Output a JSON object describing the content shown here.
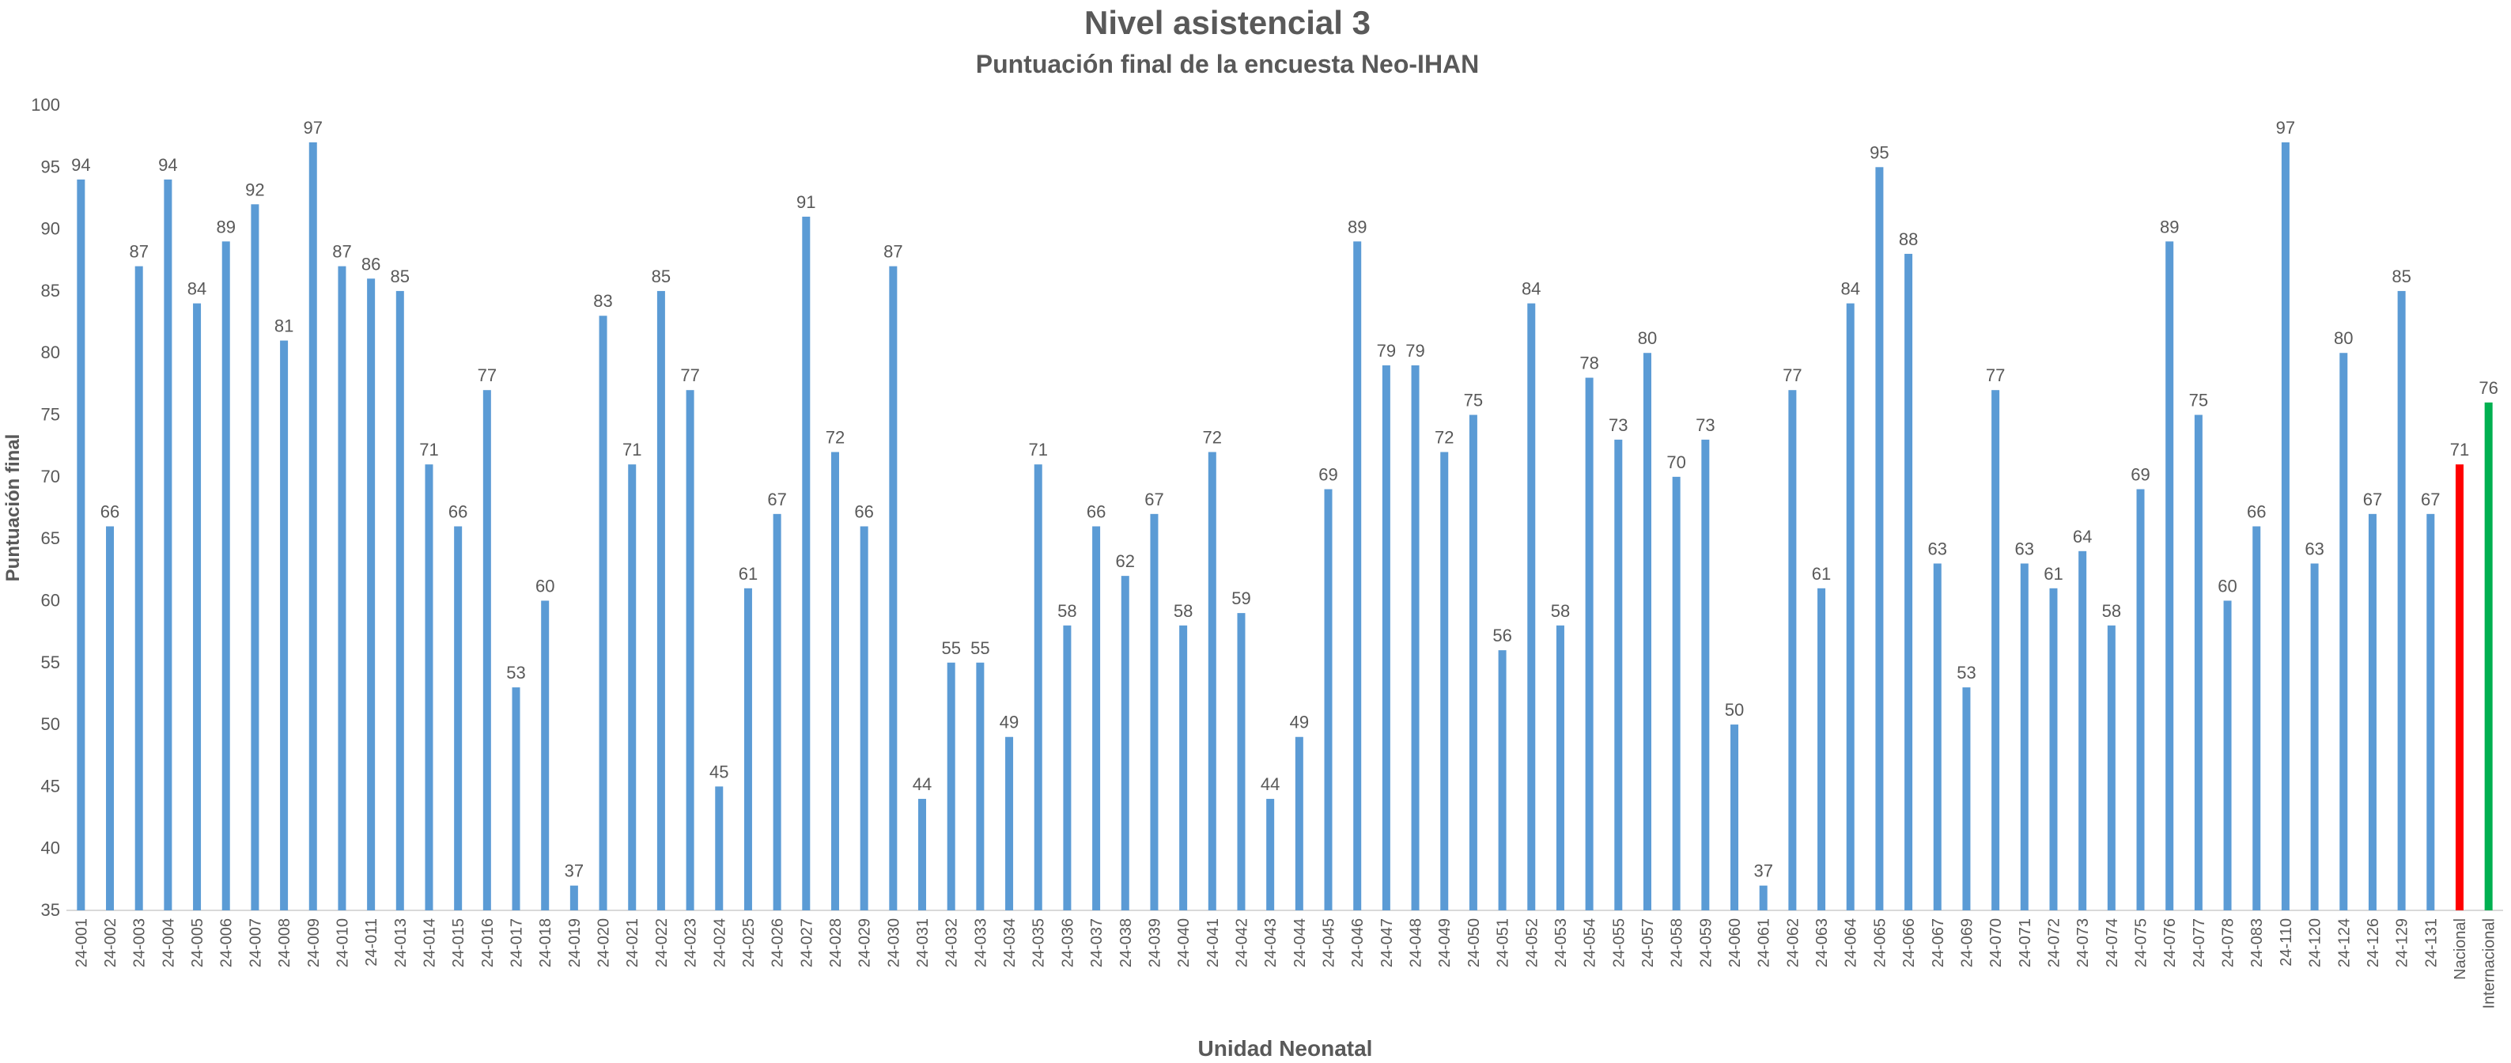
{
  "chart_data": {
    "type": "bar",
    "title": "Nivel asistencial 3",
    "subtitle": "Puntuación final de la encuesta Neo-IHAN",
    "xlabel": "Unidad Neonatal",
    "ylabel": "Puntuación final",
    "ylim": [
      35,
      100
    ],
    "yticks": [
      35,
      40,
      45,
      50,
      55,
      60,
      65,
      70,
      75,
      80,
      85,
      90,
      95,
      100
    ],
    "grid": false,
    "colors": {
      "default": "#5B9BD5",
      "Nacional": "#FF0000",
      "Internacional": "#00B050"
    },
    "categories": [
      "24-001",
      "24-002",
      "24-003",
      "24-004",
      "24-005",
      "24-006",
      "24-007",
      "24-008",
      "24-009",
      "24-010",
      "24-011",
      "24-013",
      "24-014",
      "24-015",
      "24-016",
      "24-017",
      "24-018",
      "24-019",
      "24-020",
      "24-021",
      "24-022",
      "24-023",
      "24-024",
      "24-025",
      "24-026",
      "24-027",
      "24-028",
      "24-029",
      "24-030",
      "24-031",
      "24-032",
      "24-033",
      "24-034",
      "24-035",
      "24-036",
      "24-037",
      "24-038",
      "24-039",
      "24-040",
      "24-041",
      "24-042",
      "24-043",
      "24-044",
      "24-045",
      "24-046",
      "24-047",
      "24-048",
      "24-049",
      "24-050",
      "24-051",
      "24-052",
      "24-053",
      "24-054",
      "24-055",
      "24-057",
      "24-058",
      "24-059",
      "24-060",
      "24-061",
      "24-062",
      "24-063",
      "24-064",
      "24-065",
      "24-066",
      "24-067",
      "24-069",
      "24-070",
      "24-071",
      "24-072",
      "24-073",
      "24-074",
      "24-075",
      "24-076",
      "24-077",
      "24-078",
      "24-083",
      "24-110",
      "24-120",
      "24-124",
      "24-126",
      "24-129",
      "24-131",
      "Nacional",
      "Internacional"
    ],
    "values": [
      94,
      66,
      87,
      94,
      84,
      89,
      92,
      81,
      97,
      87,
      86,
      85,
      71,
      66,
      77,
      53,
      60,
      37,
      83,
      71,
      85,
      77,
      45,
      61,
      67,
      91,
      72,
      66,
      87,
      44,
      55,
      55,
      49,
      71,
      58,
      66,
      62,
      67,
      58,
      72,
      59,
      44,
      49,
      69,
      89,
      79,
      79,
      72,
      75,
      56,
      84,
      58,
      78,
      73,
      80,
      70,
      73,
      50,
      37,
      77,
      61,
      84,
      95,
      88,
      63,
      53,
      77,
      63,
      61,
      64,
      58,
      69,
      89,
      75,
      60,
      66,
      97,
      63,
      80,
      67,
      85,
      67,
      71,
      76
    ]
  }
}
